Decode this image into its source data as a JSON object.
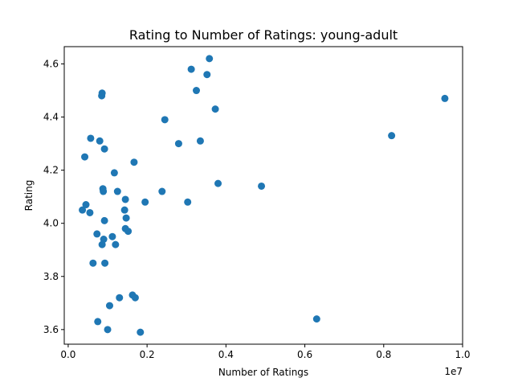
{
  "chart_data": {
    "type": "scatter",
    "title": "Rating to Number of Ratings: young-adult",
    "xlabel": "Number of Ratings",
    "ylabel": "Rating",
    "x_offset_label": "1e7",
    "xlim": [
      -0.01,
      1.0
    ],
    "ylim": [
      3.545,
      4.665
    ],
    "x_ticks": [
      0.0,
      0.2,
      0.4,
      0.6,
      0.8,
      1.0
    ],
    "x_tick_labels": [
      "0.0",
      "0.2",
      "0.4",
      "0.6",
      "0.8",
      "1.0"
    ],
    "y_ticks": [
      3.6,
      3.8,
      4.0,
      4.2,
      4.4,
      4.6
    ],
    "y_tick_labels": [
      "3.6",
      "3.8",
      "4.0",
      "4.2",
      "4.4",
      "4.6"
    ],
    "grid": false,
    "marker_color": "#1f77b4",
    "points": [
      [
        0.036,
        4.05
      ],
      [
        0.042,
        4.25
      ],
      [
        0.045,
        4.07
      ],
      [
        0.055,
        4.04
      ],
      [
        0.057,
        4.32
      ],
      [
        0.063,
        3.85
      ],
      [
        0.073,
        3.96
      ],
      [
        0.075,
        3.63
      ],
      [
        0.08,
        4.31
      ],
      [
        0.085,
        4.48
      ],
      [
        0.086,
        4.49
      ],
      [
        0.086,
        3.92
      ],
      [
        0.088,
        4.13
      ],
      [
        0.089,
        4.12
      ],
      [
        0.09,
        3.94
      ],
      [
        0.092,
        4.01
      ],
      [
        0.092,
        4.28
      ],
      [
        0.093,
        3.85
      ],
      [
        0.1,
        3.6
      ],
      [
        0.105,
        3.69
      ],
      [
        0.112,
        3.95
      ],
      [
        0.117,
        4.19
      ],
      [
        0.12,
        3.92
      ],
      [
        0.125,
        4.12
      ],
      [
        0.13,
        3.72
      ],
      [
        0.143,
        4.05
      ],
      [
        0.145,
        3.98
      ],
      [
        0.145,
        4.09
      ],
      [
        0.147,
        4.02
      ],
      [
        0.152,
        3.97
      ],
      [
        0.163,
        3.73
      ],
      [
        0.167,
        4.23
      ],
      [
        0.17,
        3.72
      ],
      [
        0.183,
        3.59
      ],
      [
        0.195,
        4.08
      ],
      [
        0.238,
        4.12
      ],
      [
        0.245,
        4.39
      ],
      [
        0.28,
        4.3
      ],
      [
        0.303,
        4.08
      ],
      [
        0.312,
        4.58
      ],
      [
        0.325,
        4.5
      ],
      [
        0.335,
        4.31
      ],
      [
        0.352,
        4.56
      ],
      [
        0.358,
        4.62
      ],
      [
        0.373,
        4.43
      ],
      [
        0.38,
        4.15
      ],
      [
        0.49,
        4.14
      ],
      [
        0.63,
        3.64
      ],
      [
        0.82,
        4.33
      ],
      [
        0.955,
        4.47
      ]
    ]
  }
}
